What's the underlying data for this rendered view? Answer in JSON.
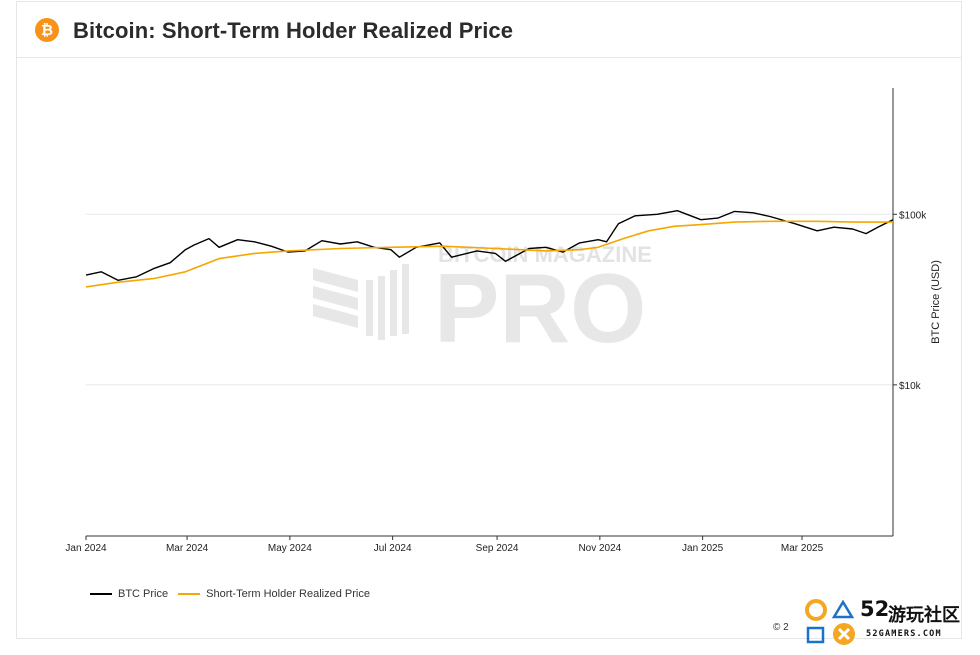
{
  "header": {
    "icon": "bitcoin-icon",
    "icon_glyph": "₿",
    "title": "Bitcoin: Short-Term Holder Realized Price"
  },
  "colors": {
    "btc_price": "#000000",
    "sth_price": "#f7a600",
    "grid": "#e8e8e8",
    "watermark": "#e9e9e9"
  },
  "watermark": {
    "line1": "BITCOIN MAGAZINE",
    "line2": "PRO"
  },
  "legend": {
    "btc_label": "BTC Price",
    "sth_label": "Short-Term Holder Realized Price"
  },
  "copyright": "© 2",
  "overlay_logo": {
    "number": "52",
    "chinese": "游玩社区",
    "sub": "52GAMERS.COM"
  },
  "chart_data": {
    "type": "line",
    "title": "Bitcoin: Short-Term Holder Realized Price",
    "xlabel": "",
    "ylabel": "BTC Price (USD)",
    "y_scale": "log",
    "ylim": [
      1300,
      550000
    ],
    "xlim": [
      "2024-01-01",
      "2025-04-24"
    ],
    "x_ticks": [
      "Jan 2024",
      "Mar 2024",
      "May 2024",
      "Jul 2024",
      "Sep 2024",
      "Nov 2024",
      "Jan 2025",
      "Mar 2025"
    ],
    "y_ticks": [
      {
        "value": 100000,
        "label": "$100k"
      },
      {
        "value": 10000,
        "label": "$10k"
      }
    ],
    "grid": true,
    "legend_position": "bottom-left",
    "series": [
      {
        "name": "BTC Price",
        "x": [
          "2024-01-01",
          "2024-01-10",
          "2024-01-20",
          "2024-01-31",
          "2024-02-10",
          "2024-02-20",
          "2024-02-29",
          "2024-03-05",
          "2024-03-14",
          "2024-03-20",
          "2024-03-31",
          "2024-04-10",
          "2024-04-20",
          "2024-04-30",
          "2024-05-10",
          "2024-05-20",
          "2024-05-31",
          "2024-06-10",
          "2024-06-20",
          "2024-06-30",
          "2024-07-05",
          "2024-07-15",
          "2024-07-29",
          "2024-08-05",
          "2024-08-20",
          "2024-08-31",
          "2024-09-06",
          "2024-09-20",
          "2024-09-30",
          "2024-10-10",
          "2024-10-20",
          "2024-10-31",
          "2024-11-05",
          "2024-11-12",
          "2024-11-22",
          "2024-12-05",
          "2024-12-17",
          "2024-12-31",
          "2025-01-10",
          "2025-01-20",
          "2025-01-31",
          "2025-02-10",
          "2025-02-25",
          "2025-03-10",
          "2025-03-20",
          "2025-03-31",
          "2025-04-08",
          "2025-04-15",
          "2025-04-24"
        ],
        "values": [
          44000,
          46000,
          41000,
          43000,
          48000,
          52000,
          62000,
          66000,
          72000,
          64000,
          71000,
          69000,
          65000,
          60000,
          61000,
          70000,
          67000,
          69000,
          64000,
          62000,
          56000,
          64000,
          68000,
          56000,
          61000,
          59000,
          53000,
          63000,
          64000,
          60000,
          68000,
          71000,
          69000,
          88000,
          98000,
          100000,
          105000,
          93000,
          95000,
          104000,
          102000,
          97000,
          88000,
          80000,
          84000,
          82000,
          77000,
          84000,
          93000
        ]
      },
      {
        "name": "Short-Term Holder Realized Price",
        "x": [
          "2024-01-01",
          "2024-01-20",
          "2024-02-10",
          "2024-02-29",
          "2024-03-20",
          "2024-04-10",
          "2024-04-30",
          "2024-05-31",
          "2024-06-30",
          "2024-07-31",
          "2024-08-31",
          "2024-09-30",
          "2024-10-20",
          "2024-10-31",
          "2024-11-15",
          "2024-11-30",
          "2024-12-15",
          "2024-12-31",
          "2025-01-20",
          "2025-02-10",
          "2025-03-10",
          "2025-04-01",
          "2025-04-24"
        ],
        "values": [
          37500,
          40000,
          42000,
          46000,
          55000,
          59000,
          61000,
          63000,
          64000,
          65000,
          63000,
          61000,
          62000,
          64000,
          72000,
          80000,
          85000,
          87000,
          90000,
          91000,
          91000,
          90000,
          90000
        ]
      }
    ]
  }
}
